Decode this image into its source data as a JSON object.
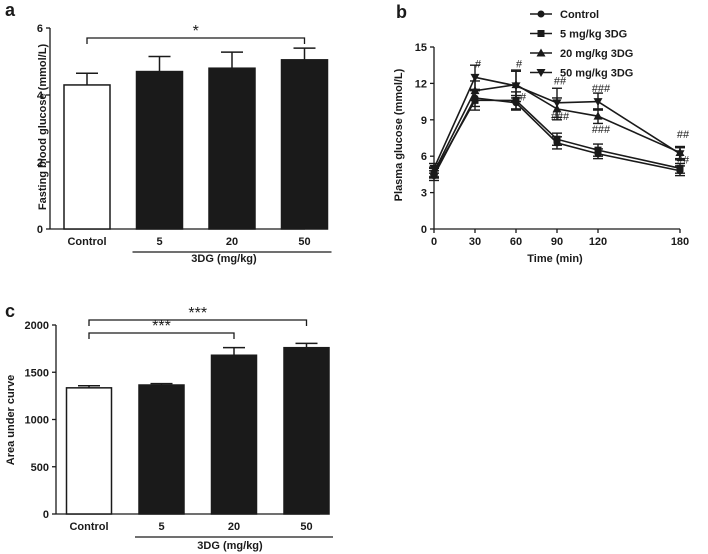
{
  "chart_data": [
    {
      "id": "a",
      "panel": "a",
      "type": "bar",
      "categories": [
        "Control",
        "5",
        "20",
        "50"
      ],
      "values": [
        4.3,
        4.7,
        4.8,
        5.05
      ],
      "errors": [
        0.35,
        0.45,
        0.48,
        0.35
      ],
      "fills": [
        "#ffffff",
        "#1a1a1a",
        "#1a1a1a",
        "#1a1a1a"
      ],
      "ylabel": "Fasting blood glucose (mmol/L)",
      "group_label": "3DG (mg/kg)",
      "ylim": [
        0,
        6
      ],
      "yticks": [
        "0",
        "2",
        "4",
        "6"
      ],
      "significance": [
        {
          "from": 0,
          "to": 3,
          "label": "*"
        }
      ]
    },
    {
      "id": "b",
      "panel": "b",
      "type": "line",
      "x": [
        0,
        30,
        60,
        90,
        120,
        180
      ],
      "xticks": [
        "0",
        "30",
        "60",
        "90",
        "120",
        "180"
      ],
      "xlabel": "Time (min)",
      "ylabel": "Plasma glucose (mmol/L)",
      "ylim": [
        0,
        15
      ],
      "xlim": [
        0,
        180
      ],
      "yticks": [
        "0",
        "3",
        "6",
        "9",
        "12",
        "15"
      ],
      "series": [
        {
          "name": "Control",
          "marker": "circle",
          "values": [
            4.4,
            10.8,
            10.4,
            7.1,
            6.2,
            4.8
          ],
          "errors": [
            0.4,
            0.7,
            0.6,
            0.5,
            0.4,
            0.4
          ]
        },
        {
          "name": "5 mg/kg 3DG",
          "marker": "square",
          "values": [
            4.6,
            10.6,
            10.6,
            7.4,
            6.5,
            5.0
          ],
          "errors": [
            0.4,
            0.8,
            0.7,
            0.5,
            0.5,
            0.4
          ]
        },
        {
          "name": "20 mg/kg 3DG",
          "marker": "triangle-up",
          "values": [
            4.7,
            11.4,
            11.9,
            9.9,
            9.3,
            6.3
          ],
          "errors": [
            0.4,
            0.8,
            1.1,
            0.9,
            0.6,
            0.5
          ]
        },
        {
          "name": "50 mg/kg 3DG",
          "marker": "triangle-down",
          "values": [
            5.0,
            12.5,
            11.8,
            10.4,
            10.5,
            6.2
          ],
          "errors": [
            0.4,
            1.0,
            1.3,
            1.2,
            0.7,
            0.5
          ]
        }
      ],
      "annotations": [
        {
          "x": 30,
          "y": 13.3,
          "text": "#"
        },
        {
          "x": 60,
          "y": 13.3,
          "text": "#"
        },
        {
          "x": 63,
          "y": 10.6,
          "text": "#"
        },
        {
          "x": 90,
          "y": 11.9,
          "text": "##"
        },
        {
          "x": 90,
          "y": 9.0,
          "text": "###"
        },
        {
          "x": 120,
          "y": 11.3,
          "text": "###"
        },
        {
          "x": 120,
          "y": 7.9,
          "text": "###"
        },
        {
          "x": 180,
          "y": 7.5,
          "text": "##"
        },
        {
          "x": 180,
          "y": 5.4,
          "text": "##"
        }
      ]
    },
    {
      "id": "c",
      "panel": "c",
      "type": "bar",
      "categories": [
        "Control",
        "5",
        "20",
        "50"
      ],
      "values": [
        1335,
        1365,
        1680,
        1760
      ],
      "errors": [
        22,
        15,
        80,
        45
      ],
      "fills": [
        "#ffffff",
        "#1a1a1a",
        "#1a1a1a",
        "#1a1a1a"
      ],
      "ylabel": "Area under curve",
      "group_label": "3DG (mg/kg)",
      "ylim": [
        0,
        2000
      ],
      "yticks": [
        "0",
        "500",
        "1000",
        "1500",
        "2000"
      ],
      "significance": [
        {
          "from": 0,
          "to": 2,
          "label": "***"
        },
        {
          "from": 0,
          "to": 3,
          "label": "***"
        }
      ]
    }
  ]
}
